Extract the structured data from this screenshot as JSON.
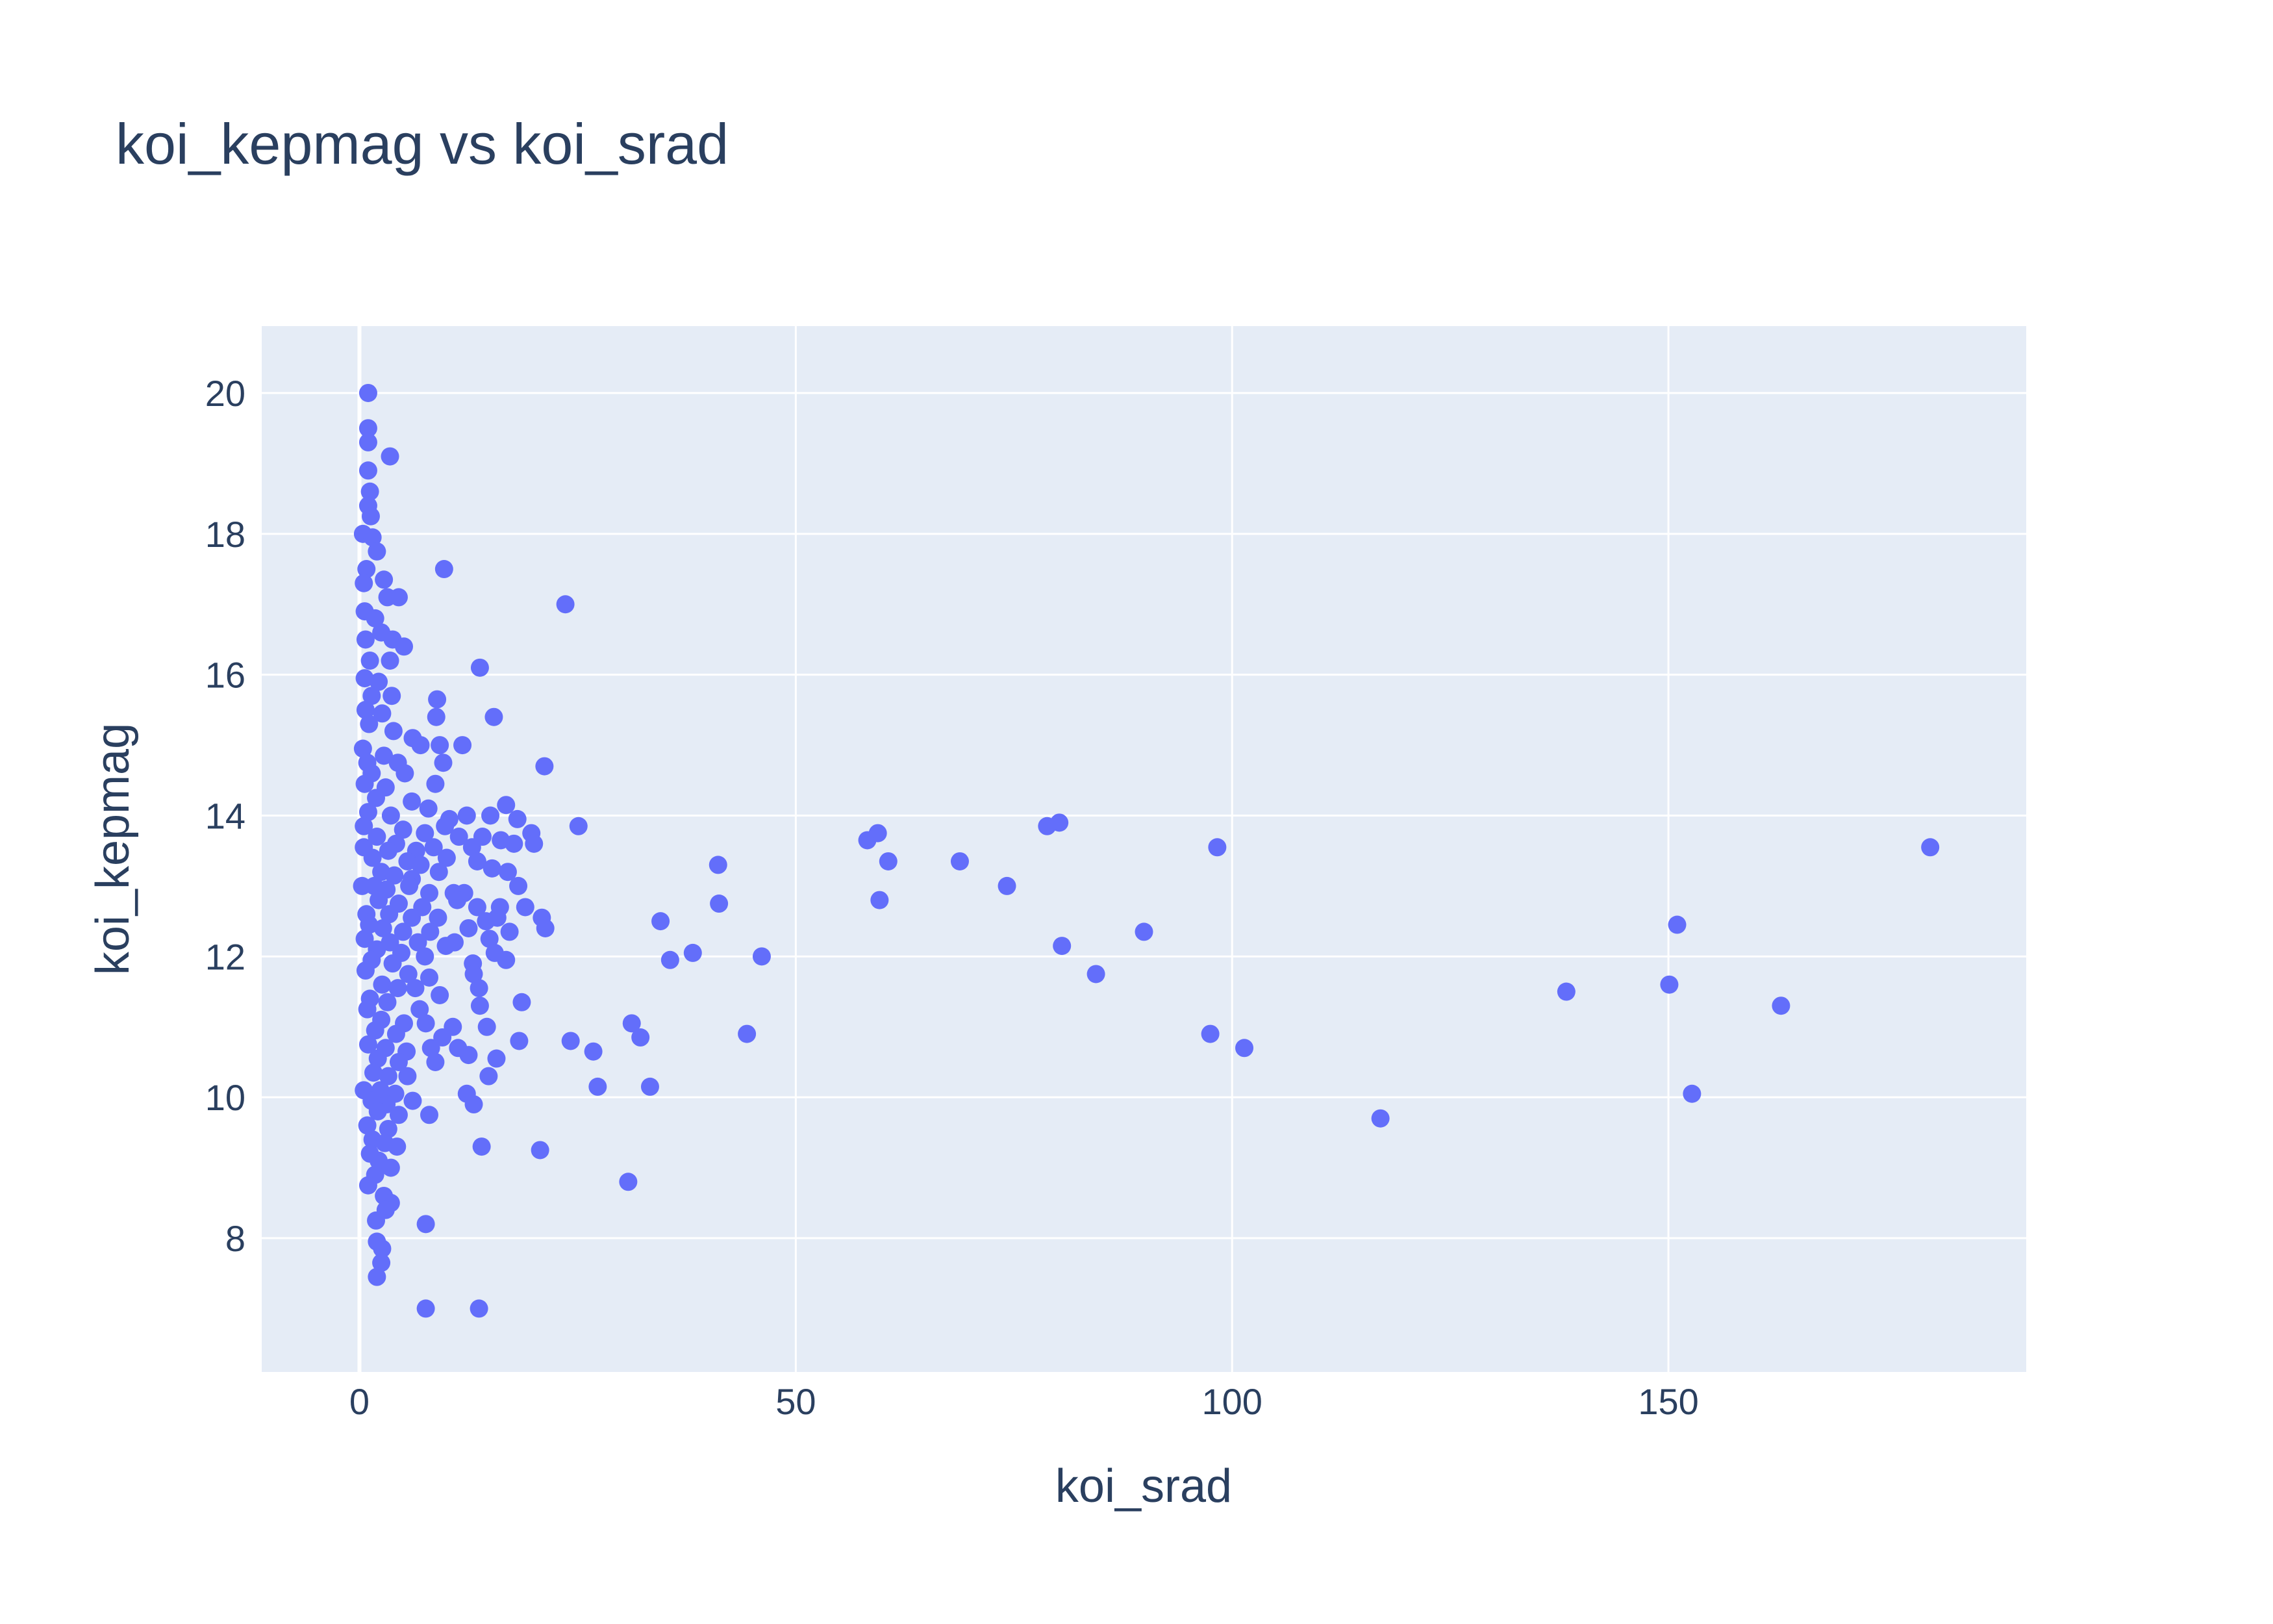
{
  "chart_data": {
    "type": "scatter",
    "title": "koi_kepmag vs koi_srad",
    "xlabel": "koi_srad",
    "ylabel": "koi_kepmag",
    "xlim": [
      -11.2,
      191
    ],
    "ylim": [
      6.1,
      20.95
    ],
    "x_ticks": [
      0,
      50,
      100,
      150
    ],
    "y_ticks": [
      8,
      10,
      12,
      14,
      16,
      18,
      20
    ],
    "grid": true,
    "legend": "none",
    "colors": {
      "marker": "#636efa",
      "plot_bg": "#e5ecf6",
      "grid": "#ffffff",
      "text": "#2a3f5f"
    },
    "series": [
      {
        "points": [
          [
            1.0,
            20.0
          ],
          [
            1.0,
            19.5
          ],
          [
            1.0,
            19.3
          ],
          [
            3.5,
            19.1
          ],
          [
            1.0,
            18.9
          ],
          [
            1.2,
            18.6
          ],
          [
            1.0,
            18.4
          ],
          [
            1.3,
            18.25
          ],
          [
            0.4,
            18.0
          ],
          [
            1.5,
            17.95
          ],
          [
            2.0,
            17.75
          ],
          [
            0.8,
            17.5
          ],
          [
            9.7,
            17.5
          ],
          [
            0.5,
            17.3
          ],
          [
            2.8,
            17.35
          ],
          [
            3.2,
            17.1
          ],
          [
            4.5,
            17.1
          ],
          [
            23.6,
            17.0
          ],
          [
            0.6,
            16.9
          ],
          [
            1.8,
            16.8
          ],
          [
            2.5,
            16.6
          ],
          [
            0.7,
            16.5
          ],
          [
            3.8,
            16.5
          ],
          [
            5.1,
            16.4
          ],
          [
            1.2,
            16.2
          ],
          [
            3.5,
            16.2
          ],
          [
            13.8,
            16.1
          ],
          [
            0.6,
            15.95
          ],
          [
            2.2,
            15.9
          ],
          [
            1.4,
            15.7
          ],
          [
            3.7,
            15.7
          ],
          [
            8.9,
            15.65
          ],
          [
            0.7,
            15.5
          ],
          [
            2.6,
            15.45
          ],
          [
            8.8,
            15.4
          ],
          [
            15.4,
            15.4
          ],
          [
            1.1,
            15.3
          ],
          [
            3.9,
            15.2
          ],
          [
            6.1,
            15.1
          ],
          [
            7.0,
            15.0
          ],
          [
            9.2,
            15.0
          ],
          [
            11.8,
            15.0
          ],
          [
            0.4,
            14.95
          ],
          [
            2.8,
            14.85
          ],
          [
            0.9,
            14.75
          ],
          [
            4.4,
            14.75
          ],
          [
            9.6,
            14.75
          ],
          [
            21.2,
            14.7
          ],
          [
            1.4,
            14.6
          ],
          [
            5.2,
            14.6
          ],
          [
            0.6,
            14.45
          ],
          [
            3.0,
            14.4
          ],
          [
            8.7,
            14.45
          ],
          [
            1.9,
            14.25
          ],
          [
            6.0,
            14.2
          ],
          [
            7.9,
            14.1
          ],
          [
            16.8,
            14.15
          ],
          [
            1.0,
            14.05
          ],
          [
            3.6,
            14.0
          ],
          [
            10.3,
            13.95
          ],
          [
            12.3,
            14.0
          ],
          [
            15.0,
            14.0
          ],
          [
            18.1,
            13.95
          ],
          [
            0.5,
            13.85
          ],
          [
            5.0,
            13.8
          ],
          [
            7.5,
            13.75
          ],
          [
            9.8,
            13.85
          ],
          [
            25.1,
            13.85
          ],
          [
            2.0,
            13.7
          ],
          [
            4.2,
            13.6
          ],
          [
            11.4,
            13.7
          ],
          [
            14.1,
            13.7
          ],
          [
            16.2,
            13.65
          ],
          [
            19.7,
            13.75
          ],
          [
            0.5,
            13.55
          ],
          [
            3.3,
            13.5
          ],
          [
            6.5,
            13.5
          ],
          [
            8.5,
            13.55
          ],
          [
            12.9,
            13.55
          ],
          [
            17.7,
            13.6
          ],
          [
            20.0,
            13.6
          ],
          [
            1.5,
            13.4
          ],
          [
            5.5,
            13.35
          ],
          [
            7.0,
            13.3
          ],
          [
            10.0,
            13.4
          ],
          [
            13.5,
            13.35
          ],
          [
            41.1,
            13.3
          ],
          [
            2.5,
            13.2
          ],
          [
            4.0,
            13.15
          ],
          [
            6.0,
            13.1
          ],
          [
            9.1,
            13.2
          ],
          [
            15.2,
            13.25
          ],
          [
            17.0,
            13.2
          ],
          [
            0.3,
            13.0
          ],
          [
            1.7,
            13.0
          ],
          [
            3.1,
            12.95
          ],
          [
            5.7,
            13.0
          ],
          [
            8.0,
            12.9
          ],
          [
            10.8,
            12.9
          ],
          [
            12.0,
            12.9
          ],
          [
            18.2,
            13.0
          ],
          [
            2.2,
            12.8
          ],
          [
            4.5,
            12.75
          ],
          [
            7.2,
            12.7
          ],
          [
            11.2,
            12.8
          ],
          [
            13.5,
            12.7
          ],
          [
            16.1,
            12.7
          ],
          [
            19.0,
            12.7
          ],
          [
            41.2,
            12.75
          ],
          [
            0.8,
            12.6
          ],
          [
            3.4,
            12.6
          ],
          [
            6.0,
            12.55
          ],
          [
            9.0,
            12.55
          ],
          [
            14.5,
            12.5
          ],
          [
            15.8,
            12.55
          ],
          [
            20.9,
            12.55
          ],
          [
            34.5,
            12.5
          ],
          [
            1.1,
            12.45
          ],
          [
            2.7,
            12.4
          ],
          [
            5.0,
            12.35
          ],
          [
            8.1,
            12.35
          ],
          [
            12.5,
            12.4
          ],
          [
            21.3,
            12.4
          ],
          [
            0.6,
            12.25
          ],
          [
            3.5,
            12.2
          ],
          [
            6.7,
            12.2
          ],
          [
            10.9,
            12.2
          ],
          [
            14.9,
            12.25
          ],
          [
            17.2,
            12.35
          ],
          [
            2.0,
            12.1
          ],
          [
            4.8,
            12.05
          ],
          [
            7.5,
            12.0
          ],
          [
            9.9,
            12.15
          ],
          [
            15.5,
            12.05
          ],
          [
            38.2,
            12.05
          ],
          [
            46.1,
            12.0
          ],
          [
            1.4,
            11.95
          ],
          [
            3.8,
            11.9
          ],
          [
            13.0,
            11.9
          ],
          [
            16.8,
            11.95
          ],
          [
            35.6,
            11.95
          ],
          [
            0.7,
            11.8
          ],
          [
            5.6,
            11.75
          ],
          [
            8.0,
            11.7
          ],
          [
            13.1,
            11.75
          ],
          [
            2.6,
            11.6
          ],
          [
            4.4,
            11.55
          ],
          [
            6.4,
            11.55
          ],
          [
            13.7,
            11.55
          ],
          [
            1.2,
            11.4
          ],
          [
            3.2,
            11.35
          ],
          [
            9.2,
            11.45
          ],
          [
            18.6,
            11.35
          ],
          [
            0.9,
            11.25
          ],
          [
            6.9,
            11.25
          ],
          [
            13.8,
            11.3
          ],
          [
            2.5,
            11.1
          ],
          [
            5.1,
            11.05
          ],
          [
            7.6,
            11.05
          ],
          [
            10.7,
            11.0
          ],
          [
            14.6,
            11.0
          ],
          [
            31.2,
            11.05
          ],
          [
            1.8,
            10.95
          ],
          [
            4.2,
            10.9
          ],
          [
            9.5,
            10.85
          ],
          [
            18.3,
            10.8
          ],
          [
            24.2,
            10.8
          ],
          [
            32.2,
            10.85
          ],
          [
            44.4,
            10.9
          ],
          [
            1.0,
            10.75
          ],
          [
            3.0,
            10.7
          ],
          [
            5.4,
            10.65
          ],
          [
            8.2,
            10.7
          ],
          [
            11.3,
            10.7
          ],
          [
            26.8,
            10.65
          ],
          [
            2.1,
            10.55
          ],
          [
            4.5,
            10.5
          ],
          [
            8.7,
            10.5
          ],
          [
            12.5,
            10.6
          ],
          [
            15.7,
            10.55
          ],
          [
            1.6,
            10.35
          ],
          [
            3.3,
            10.3
          ],
          [
            5.5,
            10.3
          ],
          [
            14.8,
            10.3
          ],
          [
            0.5,
            10.1
          ],
          [
            2.4,
            10.1
          ],
          [
            4.1,
            10.05
          ],
          [
            12.3,
            10.05
          ],
          [
            27.3,
            10.15
          ],
          [
            33.3,
            10.15
          ],
          [
            1.4,
            9.95
          ],
          [
            3.1,
            9.9
          ],
          [
            6.1,
            9.95
          ],
          [
            13.1,
            9.9
          ],
          [
            2.1,
            9.8
          ],
          [
            4.5,
            9.75
          ],
          [
            8.0,
            9.75
          ],
          [
            0.9,
            9.6
          ],
          [
            3.3,
            9.55
          ],
          [
            1.5,
            9.4
          ],
          [
            2.9,
            9.35
          ],
          [
            4.3,
            9.3
          ],
          [
            14.0,
            9.3
          ],
          [
            20.7,
            9.25
          ],
          [
            1.2,
            9.2
          ],
          [
            2.2,
            9.1
          ],
          [
            3.6,
            9.0
          ],
          [
            1.8,
            8.9
          ],
          [
            30.8,
            8.8
          ],
          [
            1.0,
            8.75
          ],
          [
            2.8,
            8.6
          ],
          [
            3.6,
            8.5
          ],
          [
            3.0,
            8.4
          ],
          [
            1.9,
            8.25
          ],
          [
            7.6,
            8.2
          ],
          [
            2.0,
            7.95
          ],
          [
            2.6,
            7.85
          ],
          [
            2.5,
            7.65
          ],
          [
            2.0,
            7.45
          ],
          [
            7.6,
            7.0
          ],
          [
            13.7,
            7.0
          ],
          [
            58.2,
            13.65
          ],
          [
            59.4,
            13.75
          ],
          [
            60.6,
            13.35
          ],
          [
            68.8,
            13.35
          ],
          [
            74.2,
            13.0
          ],
          [
            78.8,
            13.85
          ],
          [
            80.2,
            13.9
          ],
          [
            98.3,
            13.55
          ],
          [
            59.6,
            12.8
          ],
          [
            80.5,
            12.15
          ],
          [
            89.9,
            12.35
          ],
          [
            84.4,
            11.75
          ],
          [
            97.5,
            10.9
          ],
          [
            101.4,
            10.7
          ],
          [
            117.0,
            9.7
          ],
          [
            138.3,
            11.5
          ],
          [
            150.1,
            11.6
          ],
          [
            151.0,
            12.45
          ],
          [
            152.7,
            10.05
          ],
          [
            162.9,
            11.3
          ],
          [
            180.0,
            13.55
          ]
        ]
      }
    ]
  }
}
